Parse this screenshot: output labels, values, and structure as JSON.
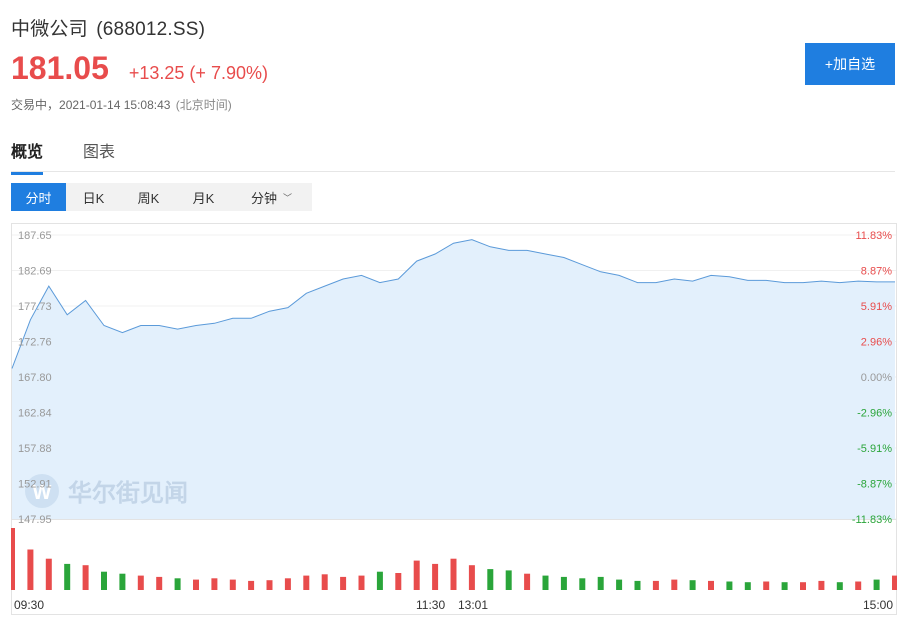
{
  "stock": {
    "name": "中微公司",
    "code": "(688012.SS)",
    "price": "181.05",
    "change": "+13.25 (+ 7.90%)",
    "status": "交易中，",
    "timestamp": "2021-01-14 15:08:43",
    "timezone": "(北京时间)"
  },
  "actions": {
    "add_watchlist": "+加自选"
  },
  "main_tabs": [
    {
      "label": "概览",
      "active": true
    },
    {
      "label": "图表",
      "active": false
    }
  ],
  "period_tabs": [
    {
      "label": "分时",
      "active": true
    },
    {
      "label": "日K",
      "active": false
    },
    {
      "label": "周K",
      "active": false
    },
    {
      "label": "月K",
      "active": false
    },
    {
      "label": "分钟",
      "active": false,
      "dropdown": true
    }
  ],
  "watermark": {
    "text": "华尔街见闻"
  },
  "colors": {
    "accent": "#1f7ee0",
    "up": "#e84c4c",
    "down": "#2aa53a",
    "line": "#5b9ad9",
    "fill": "#e3f0fc"
  },
  "chart_data": {
    "type": "area",
    "prev_close": 167.8,
    "ylim": [
      147.95,
      187.65
    ],
    "y_ticks_left": [
      "187.65",
      "182.69",
      "177.73",
      "172.76",
      "167.80",
      "162.84",
      "157.88",
      "152.91",
      "147.95"
    ],
    "y_ticks_right": [
      "11.83%",
      "8.87%",
      "5.91%",
      "2.96%",
      "0.00%",
      "-2.96%",
      "-5.91%",
      "-8.87%",
      "-11.83%"
    ],
    "x_ticks": [
      "09:30",
      "11:30",
      "13:01",
      "15:00"
    ],
    "x": [
      "09:30",
      "09:35",
      "09:40",
      "09:45",
      "09:50",
      "09:55",
      "10:00",
      "10:05",
      "10:10",
      "10:15",
      "10:20",
      "10:25",
      "10:30",
      "10:35",
      "10:40",
      "10:45",
      "10:50",
      "10:55",
      "11:00",
      "11:05",
      "11:10",
      "11:15",
      "11:20",
      "11:25",
      "11:30",
      "13:05",
      "13:10",
      "13:15",
      "13:20",
      "13:25",
      "13:30",
      "13:35",
      "13:40",
      "13:45",
      "13:50",
      "13:55",
      "14:00",
      "14:05",
      "14:10",
      "14:15",
      "14:20",
      "14:25",
      "14:30",
      "14:35",
      "14:40",
      "14:45",
      "14:50",
      "14:55",
      "15:00"
    ],
    "price": [
      169.0,
      175.8,
      180.5,
      176.5,
      178.5,
      175.0,
      174.0,
      175.0,
      175.0,
      174.5,
      175.0,
      175.3,
      176.0,
      176.0,
      177.0,
      177.5,
      179.5,
      180.5,
      181.5,
      182.0,
      181.0,
      181.5,
      184.0,
      185.0,
      186.5,
      187.0,
      186.0,
      185.5,
      185.5,
      185.0,
      184.5,
      183.5,
      182.5,
      182.0,
      181.0,
      181.0,
      181.5,
      181.2,
      182.0,
      181.8,
      181.3,
      181.3,
      181.0,
      181.0,
      181.2,
      181.0,
      181.2,
      181.1,
      181.1
    ],
    "volume": [
      95,
      62,
      48,
      40,
      38,
      28,
      25,
      22,
      20,
      18,
      16,
      18,
      16,
      14,
      15,
      18,
      22,
      24,
      20,
      22,
      28,
      26,
      45,
      40,
      48,
      38,
      32,
      30,
      25,
      22,
      20,
      18,
      20,
      16,
      14,
      14,
      16,
      15,
      14,
      13,
      12,
      13,
      12,
      12,
      14,
      12,
      13,
      16,
      22
    ]
  }
}
